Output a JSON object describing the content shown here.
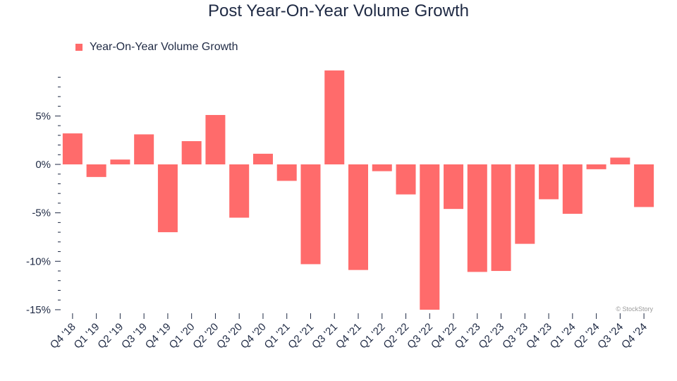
{
  "chart_data": {
    "type": "bar",
    "title": "Post Year-On-Year Volume Growth",
    "xlabel": "",
    "ylabel": "",
    "categories": [
      "Q4 '18",
      "Q1 '19",
      "Q2 '19",
      "Q3 '19",
      "Q4 '19",
      "Q1 '20",
      "Q2 '20",
      "Q3 '20",
      "Q4 '20",
      "Q1 '21",
      "Q2 '21",
      "Q3 '21",
      "Q4 '21",
      "Q1 '22",
      "Q2 '22",
      "Q3 '22",
      "Q4 '22",
      "Q1 '23",
      "Q2 '23",
      "Q3 '23",
      "Q4 '23",
      "Q1 '24",
      "Q2 '24",
      "Q3 '24",
      "Q4 '24"
    ],
    "series": [
      {
        "name": "Year-On-Year Volume Growth",
        "values": [
          3.2,
          -1.3,
          0.5,
          3.1,
          -7.0,
          2.4,
          5.1,
          -5.5,
          1.1,
          -1.7,
          -10.3,
          9.7,
          -10.9,
          -0.7,
          -3.1,
          -15.0,
          -4.6,
          -11.1,
          -11.0,
          -8.2,
          -3.6,
          -5.1,
          -0.5,
          0.7,
          -4.4
        ]
      }
    ],
    "ylim": [
      -15,
      10
    ],
    "yticks": [
      5,
      0,
      -5,
      -10,
      -15
    ],
    "ytick_labels": [
      "5%",
      "0%",
      "-5%",
      "-10%",
      "-15%"
    ],
    "grid": false,
    "legend_position": "top-left",
    "bar_color": "#ff6b6b"
  },
  "watermark": "© StockStory"
}
